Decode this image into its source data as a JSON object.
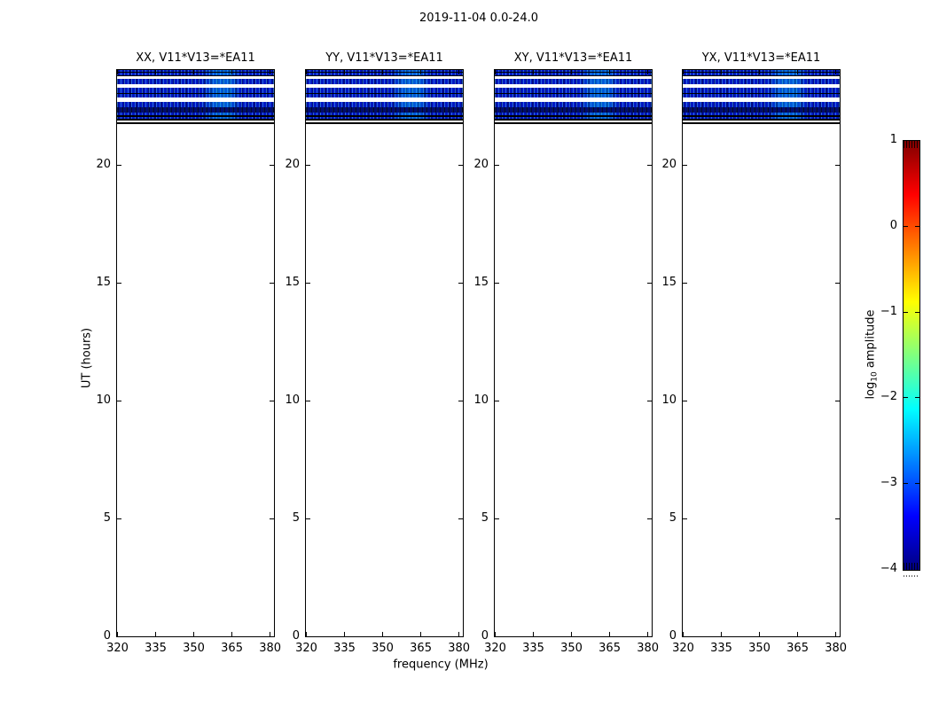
{
  "figure": {
    "title": "2019-11-04 0.0-24.0",
    "xlabel": "frequency (MHz)",
    "ylabel": "UT (hours)",
    "background": "#ffffff"
  },
  "panels": [
    {
      "title": "XX, V11*V13=*EA11"
    },
    {
      "title": "YY, V11*V13=*EA11"
    },
    {
      "title": "XY, V11*V13=*EA11"
    },
    {
      "title": "YX, V11*V13=*EA11"
    }
  ],
  "axes": {
    "x_tick_labels": [
      "320",
      "335",
      "350",
      "365",
      "380"
    ],
    "x_tick_values": [
      320,
      335,
      350,
      365,
      380
    ],
    "x_range": [
      320,
      381.7
    ],
    "y_tick_labels": [
      "0",
      "5",
      "10",
      "15",
      "20"
    ],
    "y_tick_values": [
      0,
      5,
      10,
      15,
      20
    ],
    "y_range": [
      0,
      24
    ]
  },
  "colorbar": {
    "label_prefix": "log",
    "label_sub": "10",
    "label_suffix": " amplitude",
    "tick_labels": [
      "1",
      "0",
      "−1",
      "−2",
      "−3",
      "−4"
    ],
    "tick_values": [
      1,
      0,
      -1,
      -2,
      -3,
      -4
    ],
    "range": [
      -4,
      1
    ],
    "colormap": "jet",
    "gradient_stops": [
      "#800000 0%",
      "#ff0000 12.5%",
      "#ffff00 37.5%",
      "#00ffff 62.5%",
      "#0000ff 87.5%",
      "#000080 100%"
    ]
  },
  "chart_data": {
    "type": "heatmap",
    "title": "2019-11-04 0.0-24.0",
    "panels": [
      "XX, V11*V13=*EA11",
      "YY, V11*V13=*EA11",
      "XY, V11*V13=*EA11",
      "YX, V11*V13=*EA11"
    ],
    "xlabel": "frequency (MHz)",
    "ylabel": "UT (hours)",
    "x_range": [
      320,
      381.7
    ],
    "x_ticks": [
      320,
      335,
      350,
      365,
      380
    ],
    "y_range": [
      0,
      24
    ],
    "y_ticks": [
      0,
      5,
      10,
      15,
      20
    ],
    "colorbar": {
      "label": "log10 amplitude",
      "range": [
        -4,
        1
      ],
      "ticks": [
        1,
        0,
        -1,
        -2,
        -3,
        -4
      ],
      "colormap": "jet"
    },
    "content_summary": "Dynamic spectra for four polarization products (XX, YY, XY, YX). Data exist only between UT ~21.6 and 24.0 as horizontal noisy bands of low amplitude (log10 amplitude ~ -4 to -2.5, rendered blue with cyan speckle, brighter cyan patches near 60-75% of the band width); several fully flagged black rows; the identical band pattern repeats in all four panels; UT 0 to ~21.6 is blank white (no data).",
    "bands_ut_hours": [
      {
        "ut": [
          23.88,
          24.0
        ],
        "level": "blue"
      },
      {
        "ut": [
          23.74,
          23.84
        ],
        "level": "blue"
      },
      {
        "ut": [
          23.36,
          23.59
        ],
        "level": "blue"
      },
      {
        "ut": [
          22.99,
          23.21
        ],
        "level": "blue"
      },
      {
        "ut": [
          22.8,
          22.95
        ],
        "level": "blue"
      },
      {
        "ut": [
          22.39,
          22.62
        ],
        "level": "blue"
      },
      {
        "ut": [
          22.17,
          22.39
        ],
        "level": "dark-blue"
      },
      {
        "ut": [
          22.06,
          22.17
        ],
        "level": "blue"
      },
      {
        "ut": [
          21.91,
          21.98
        ],
        "level": "blue"
      },
      {
        "ut": [
          21.68,
          21.76
        ],
        "level": "flagged-black"
      }
    ],
    "stripe_rows": [
      {
        "t": 0,
        "h": 2,
        "c": "blue"
      },
      {
        "t": 2,
        "h": 1,
        "c": "black"
      },
      {
        "t": 3,
        "h": 3,
        "c": "blue"
      },
      {
        "t": 6,
        "h": 1,
        "c": "black"
      },
      {
        "t": 10,
        "h": 6,
        "c": "blue"
      },
      {
        "t": 20,
        "h": 6,
        "c": "blue"
      },
      {
        "t": 26,
        "h": 1,
        "c": "black"
      },
      {
        "t": 27,
        "h": 4,
        "c": "blue"
      },
      {
        "t": 36,
        "h": 6,
        "c": "blue"
      },
      {
        "t": 42,
        "h": 6,
        "c": "navy"
      },
      {
        "t": 48,
        "h": 3,
        "c": "blue"
      },
      {
        "t": 51,
        "h": 2,
        "c": "black"
      },
      {
        "t": 53,
        "h": 2,
        "c": "blue"
      },
      {
        "t": 55,
        "h": 2,
        "c": "black"
      },
      {
        "t": 59,
        "h": 2,
        "c": "black"
      }
    ]
  }
}
